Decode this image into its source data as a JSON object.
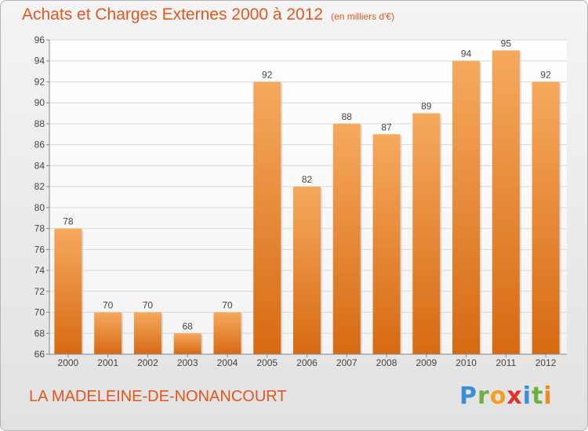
{
  "header": {
    "title": "Achats et Charges Externes 2000 à 2012",
    "unit": "(en milliers d'€)"
  },
  "footer": {
    "commune": "LA MADELEINE-DE-NONANCOURT",
    "logo": "Proxiti"
  },
  "colors": {
    "bar_top": "#f6a95e",
    "bar_bottom": "#d66a12",
    "text_accent": "#e0571f",
    "grid": "#d9d9d9"
  },
  "chart_data": {
    "type": "bar",
    "title": "Achats et Charges Externes 2000 à 2012",
    "subtitle": "(en milliers d'€)",
    "categories": [
      "2000",
      "2001",
      "2002",
      "2003",
      "2004",
      "2005",
      "2006",
      "2007",
      "2008",
      "2009",
      "2010",
      "2011",
      "2012"
    ],
    "values": [
      78,
      70,
      70,
      68,
      70,
      92,
      82,
      88,
      87,
      89,
      94,
      95,
      92
    ],
    "ylim": [
      66,
      96
    ],
    "yticks": [
      66,
      68,
      70,
      72,
      74,
      76,
      78,
      80,
      82,
      84,
      86,
      88,
      90,
      92,
      94,
      96
    ],
    "grid": true,
    "data_labels": true
  }
}
